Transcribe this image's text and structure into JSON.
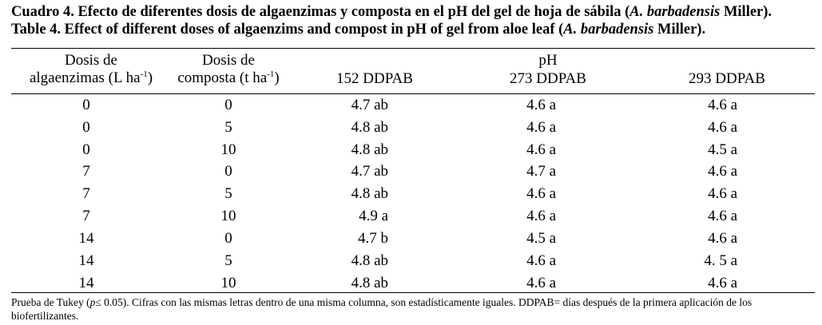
{
  "caption": {
    "es_prefix": "Cuadro 4. Efecto de diferentes dosis de algaenzimas y composta en el pH del gel de hoja de sábila (",
    "es_species": "A. barbadensis",
    "es_suffix": " Miller).",
    "en_prefix": "Table 4. Effect of different doses of algaenzims and compost in pH of gel from aloe leaf (",
    "en_species": "A. barbadensis",
    "en_suffix": " Miller)."
  },
  "headers": {
    "col1_line1": "Dosis de",
    "col1_line2": "algaenzimas (L ha",
    "col1_sup": "-1",
    "col1_close": ")",
    "col2_line1": "Dosis de",
    "col2_line2": "composta (t ha",
    "col2_sup": "-1",
    "col2_close": ")",
    "group": "pH",
    "c3": "152 DDPAB",
    "c4": "273 DDPAB",
    "c5": "293 DDPAB"
  },
  "rows": [
    [
      "0",
      "0",
      "4.7 ab",
      "4.6 a",
      "4.6 a"
    ],
    [
      "0",
      "5",
      "4.8 ab",
      "4.6 a",
      "4.6 a"
    ],
    [
      "0",
      "10",
      "4.8 ab",
      "4.6 a",
      "4.5 a"
    ],
    [
      "7",
      "0",
      "4.7 ab",
      "4.7 a",
      "4.6 a"
    ],
    [
      "7",
      "5",
      "4.8 ab",
      "4.6 a",
      "4.6 a"
    ],
    [
      "7",
      "10",
      "4.9 a",
      "4.6 a",
      "4.6 a"
    ],
    [
      "14",
      "0",
      "4.7 b",
      "4.5 a",
      "4.6 a"
    ],
    [
      "14",
      "5",
      "4.8 ab",
      "4.6 a",
      "4. 5 a"
    ],
    [
      "14",
      "10",
      "4.8 ab",
      "4.6 a",
      "4.6 a"
    ]
  ],
  "footnote": {
    "prefix": "Prueba de Tukey (",
    "p": "p",
    "after_p": "≤ 0.05). Cifras con las mismas letras dentro de una misma columna, son estadísticamente iguales. DDPAB= días después de la primera aplicación de los biofertilizantes."
  }
}
